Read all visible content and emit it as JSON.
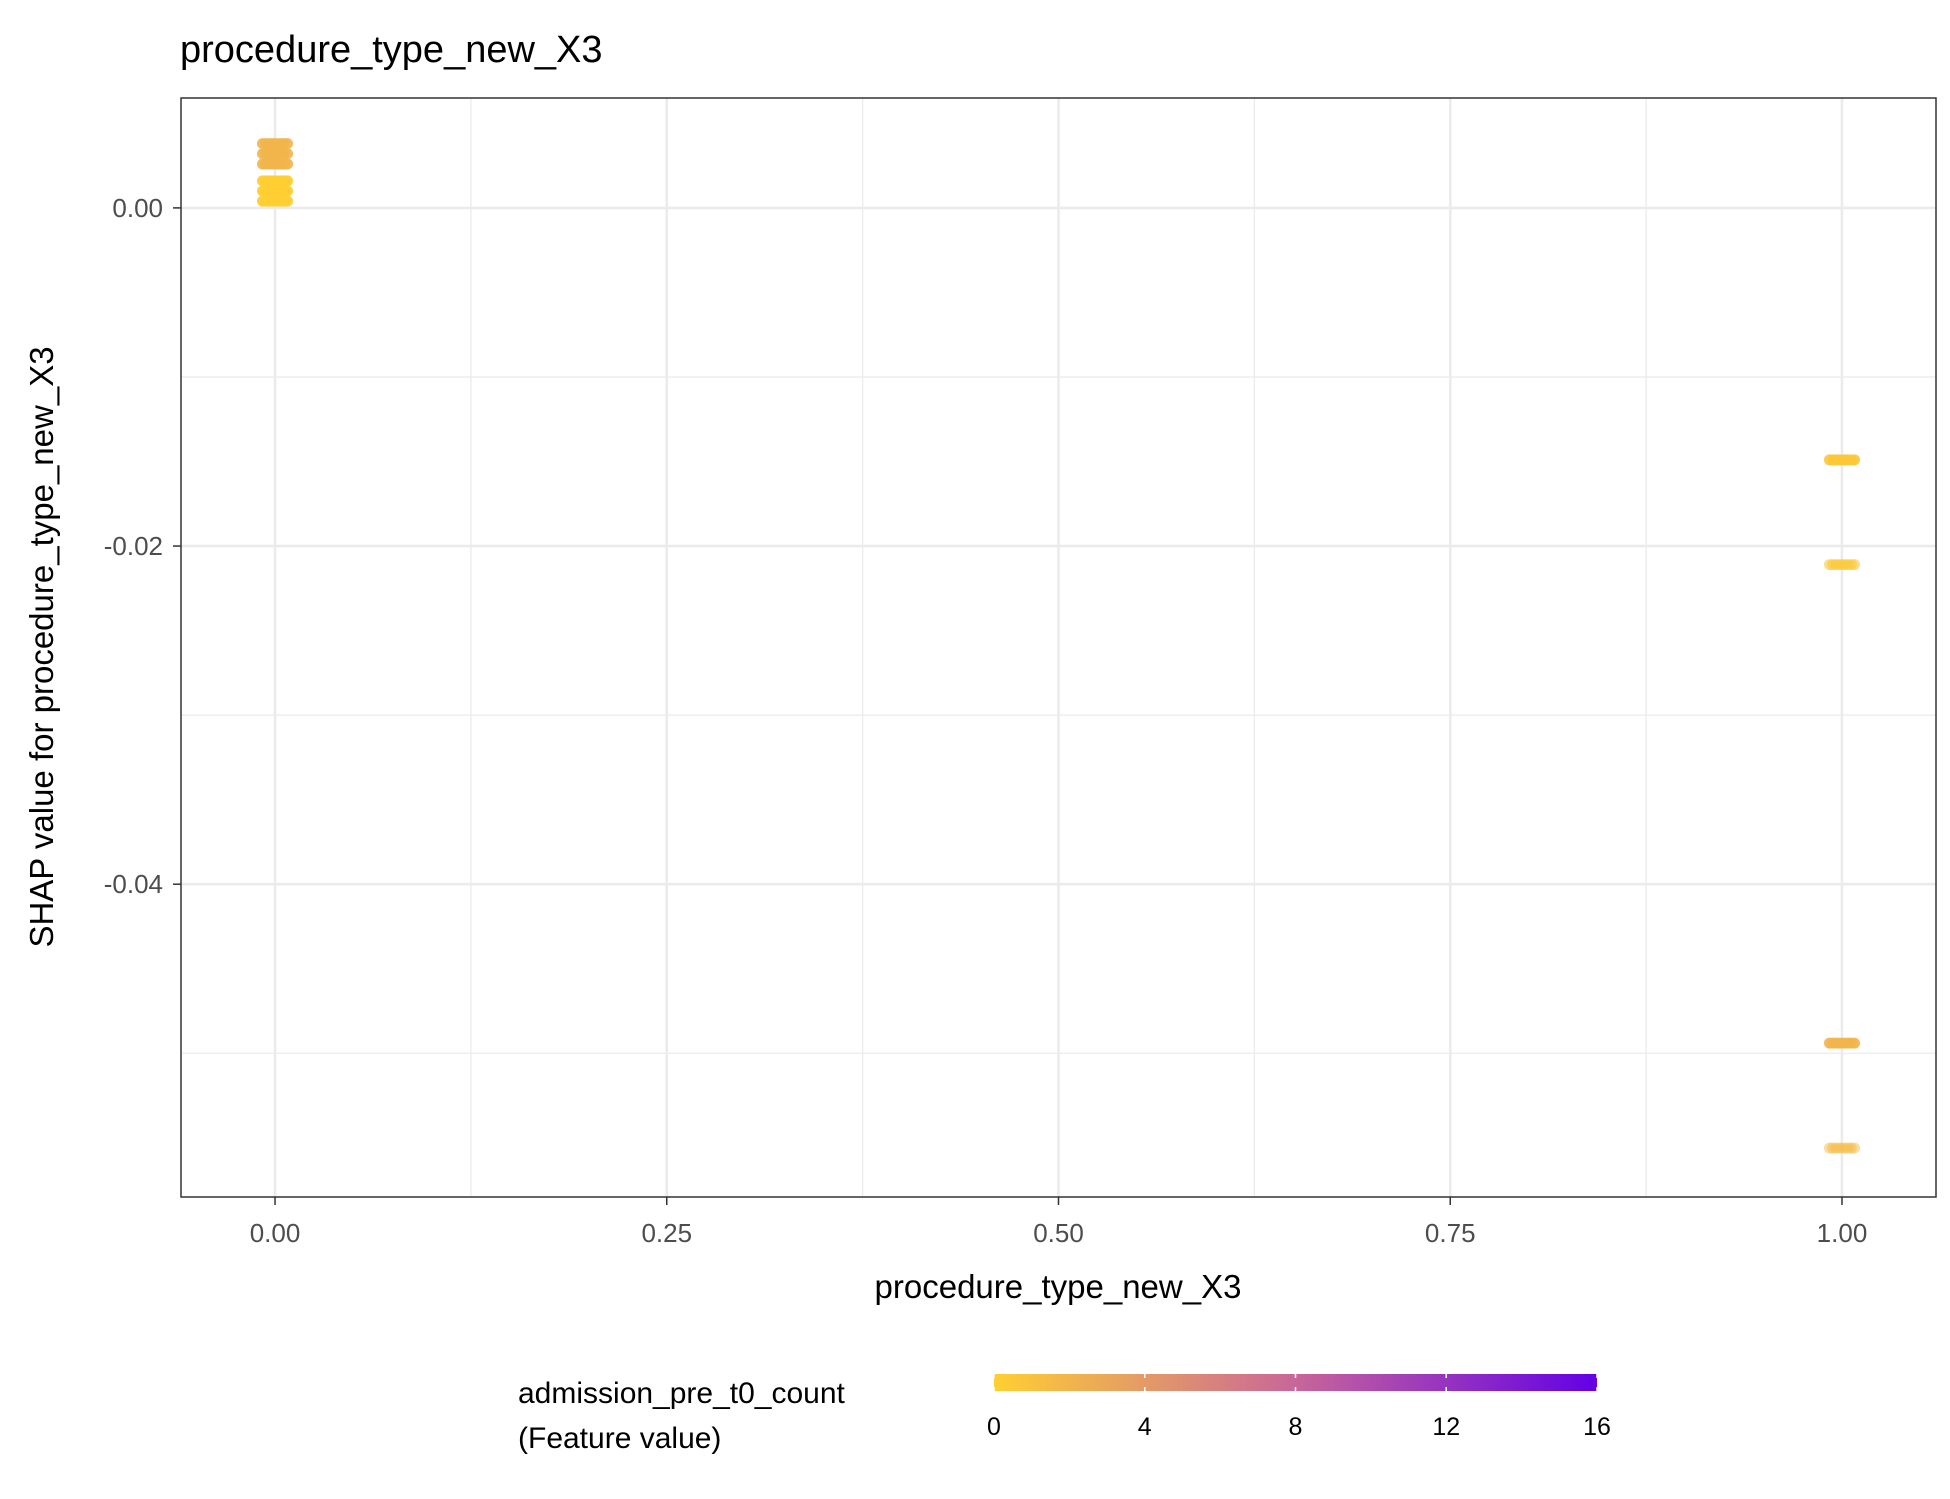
{
  "chart_data": {
    "type": "scatter",
    "title": "procedure_type_new_X3",
    "xlabel": "procedure_type_new_X3",
    "ylabel": "SHAP value for procedure_type_new_X3",
    "xlim": [
      -0.06,
      1.06
    ],
    "ylim": [
      -0.0585,
      0.0065
    ],
    "x_ticks": [
      0.0,
      0.25,
      0.5,
      0.75,
      1.0
    ],
    "x_tick_labels": [
      "0.00",
      "0.25",
      "0.50",
      "0.75",
      "1.00"
    ],
    "y_ticks": [
      0.0,
      -0.02,
      -0.04
    ],
    "y_tick_labels": [
      "0.00",
      "-0.02",
      "-0.04"
    ],
    "grid": true,
    "legend": {
      "title_lines": [
        "admission_pre_t0_count",
        "(Feature value)"
      ],
      "placement": "bottom",
      "range": [
        0,
        16
      ],
      "ticks": [
        0,
        4,
        8,
        12,
        16
      ],
      "tick_labels": [
        "0",
        "4",
        "8",
        "12",
        "16"
      ],
      "color_low": "#FFCF33",
      "color_mid": "#C8669A",
      "color_high": "#6300E6"
    },
    "clusters": [
      {
        "x": 0,
        "y": 0.0032,
        "feature_value": 2,
        "opacity": 0.9
      },
      {
        "x": 0,
        "y": 0.001,
        "feature_value": 0,
        "opacity": 0.95
      },
      {
        "x": 1,
        "y": -0.0149,
        "feature_value": 0.5,
        "opacity": 0.9
      },
      {
        "x": 1,
        "y": -0.0211,
        "feature_value": 0.5,
        "opacity": 0.6
      },
      {
        "x": 1,
        "y": -0.0494,
        "feature_value": 2,
        "opacity": 0.9
      },
      {
        "x": 1,
        "y": -0.0556,
        "feature_value": 1.5,
        "opacity": 0.5
      }
    ]
  }
}
